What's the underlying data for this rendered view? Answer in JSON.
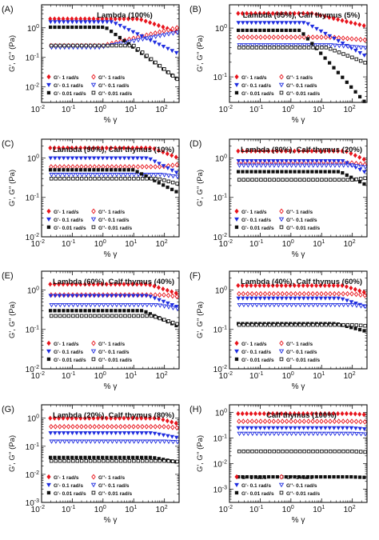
{
  "figure": {
    "x_label": "% γ",
    "y_label": "G', G'' (Pa)",
    "legend_labels": [
      "G'- 1 rad/s",
      "G''- 1 rad/s",
      "G'- 0.1 rad/s",
      "G''- 0.1 rad/s",
      "G'- 0.01 rad/s",
      "G''- 0.01 rad/s"
    ]
  },
  "colors": {
    "red": "#e8141c",
    "blue": "#1f2de0",
    "black": "#111111"
  },
  "chart_data": [
    {
      "panel": "(A)",
      "type": "scatter",
      "title": "Lambda (100%)",
      "xlabel": "% γ",
      "ylabel": "G', G'' (Pa)",
      "x_scale": "log",
      "y_scale": "log",
      "xlim": [
        0.01,
        300
      ],
      "ylim": [
        0.003,
        6
      ],
      "y_ticks": [
        "10^-1",
        "10^0"
      ],
      "legend_position": "bottom-left",
      "series": [
        {
          "name": "G'- 1 rad/s",
          "color": "red",
          "marker": "diamond",
          "filled": true,
          "y_plateau": 2.0,
          "x_onset": 15,
          "decay": 0.35
        },
        {
          "name": "G''- 1 rad/s",
          "color": "red",
          "marker": "diamond",
          "filled": false,
          "y_plateau": 0.25,
          "x_onset": 1,
          "decay": -0.25
        },
        {
          "name": "G'- 0.1 rad/s",
          "color": "blue",
          "marker": "triangle",
          "filled": true,
          "y_plateau": 1.6,
          "x_onset": 2,
          "decay": 0.5
        },
        {
          "name": "G''- 0.1 rad/s",
          "color": "blue",
          "marker": "triangle",
          "filled": false,
          "y_plateau": 0.22,
          "x_onset": 0.8,
          "decay": -0.2
        },
        {
          "name": "G'- 0.01 rad/s",
          "color": "black",
          "marker": "square",
          "filled": true,
          "y_plateau": 1.05,
          "x_onset": 1.2,
          "decay": 0.75
        },
        {
          "name": "G''- 0.01 rad/s",
          "color": "black",
          "marker": "square",
          "filled": false,
          "y_plateau": 0.25,
          "x_onset": 10,
          "decay": 0.8
        }
      ]
    },
    {
      "panel": "(B)",
      "type": "scatter",
      "title": "Lambda (95%), Calf thymus (5%)",
      "xlabel": "% γ",
      "ylabel": "G', G'' (Pa)",
      "x_scale": "log",
      "y_scale": "log",
      "xlim": [
        0.01,
        300
      ],
      "ylim": [
        0.03,
        3
      ],
      "y_ticks": [
        "10^-1",
        "10^0"
      ],
      "legend_position": "bottom-left",
      "series": [
        {
          "name": "G'- 1 rad/s",
          "color": "red",
          "marker": "diamond",
          "filled": true,
          "y_plateau": 2.0,
          "x_onset": 5,
          "decay": 0.15
        },
        {
          "name": "G''- 1 rad/s",
          "color": "red",
          "marker": "diamond",
          "filled": false,
          "y_plateau": 0.65,
          "x_onset": 20,
          "decay": 0.05
        },
        {
          "name": "G'- 0.1 rad/s",
          "color": "blue",
          "marker": "triangle",
          "filled": true,
          "y_plateau": 1.3,
          "x_onset": 3,
          "decay": 0.35
        },
        {
          "name": "G''- 0.1 rad/s",
          "color": "blue",
          "marker": "triangle",
          "filled": false,
          "y_plateau": 0.45,
          "x_onset": 20,
          "decay": 0.05
        },
        {
          "name": "G'- 0.01 rad/s",
          "color": "black",
          "marker": "square",
          "filled": true,
          "y_plateau": 0.9,
          "x_onset": 2,
          "decay": 0.7
        },
        {
          "name": "G''- 0.01 rad/s",
          "color": "black",
          "marker": "square",
          "filled": false,
          "y_plateau": 0.4,
          "x_onset": 15,
          "decay": 0.25
        }
      ]
    },
    {
      "panel": "(C)",
      "type": "scatter",
      "title": "Lambda (90%), Calf thymus (10%)",
      "xlabel": "% γ",
      "ylabel": "G', G'' (Pa)",
      "x_scale": "log",
      "y_scale": "log",
      "xlim": [
        0.01,
        300
      ],
      "ylim": [
        0.01,
        3
      ],
      "y_ticks": [
        "10^-1",
        "10^0"
      ],
      "legend_position": "bottom-left",
      "series": [
        {
          "name": "G'- 1 rad/s",
          "color": "red",
          "marker": "diamond",
          "filled": true,
          "y_plateau": 1.8,
          "x_onset": 40,
          "decay": 0.3
        },
        {
          "name": "G''- 1 rad/s",
          "color": "red",
          "marker": "diamond",
          "filled": false,
          "y_plateau": 0.6,
          "x_onset": 80,
          "decay": -0.1
        },
        {
          "name": "G'- 0.1 rad/s",
          "color": "blue",
          "marker": "triangle",
          "filled": true,
          "y_plateau": 1.0,
          "x_onset": 30,
          "decay": 0.4
        },
        {
          "name": "G''- 0.1 rad/s",
          "color": "blue",
          "marker": "triangle",
          "filled": false,
          "y_plateau": 0.38,
          "x_onset": 80,
          "decay": 0.1
        },
        {
          "name": "G'- 0.01 rad/s",
          "color": "black",
          "marker": "square",
          "filled": true,
          "y_plateau": 0.5,
          "x_onset": 10,
          "decay": 0.4
        },
        {
          "name": "G''- 0.01 rad/s",
          "color": "black",
          "marker": "square",
          "filled": false,
          "y_plateau": 0.3,
          "x_onset": 60,
          "decay": 0.2
        }
      ]
    },
    {
      "panel": "(D)",
      "type": "scatter",
      "title": "Lambda (80%), Calf thymus (20%)",
      "xlabel": "% γ",
      "ylabel": "G', G'' (Pa)",
      "x_scale": "log",
      "y_scale": "log",
      "xlim": [
        0.01,
        300
      ],
      "ylim": [
        0.01,
        3
      ],
      "y_ticks": [
        "10^-1",
        "10^0"
      ],
      "legend_position": "bottom-left",
      "series": [
        {
          "name": "G'- 1 rad/s",
          "color": "red",
          "marker": "diamond",
          "filled": true,
          "y_plateau": 1.5,
          "x_onset": 60,
          "decay": 0.35
        },
        {
          "name": "G''- 1 rad/s",
          "color": "red",
          "marker": "diamond",
          "filled": false,
          "y_plateau": 0.75,
          "x_onset": 100,
          "decay": 0.1
        },
        {
          "name": "G'- 0.1 rad/s",
          "color": "blue",
          "marker": "triangle",
          "filled": true,
          "y_plateau": 0.85,
          "x_onset": 50,
          "decay": 0.4
        },
        {
          "name": "G''- 0.1 rad/s",
          "color": "blue",
          "marker": "triangle",
          "filled": false,
          "y_plateau": 0.65,
          "x_onset": 100,
          "decay": 0.1
        },
        {
          "name": "G'- 0.01 rad/s",
          "color": "black",
          "marker": "square",
          "filled": true,
          "y_plateau": 0.45,
          "x_onset": 40,
          "decay": 0.4
        },
        {
          "name": "G''- 0.01 rad/s",
          "color": "black",
          "marker": "square",
          "filled": false,
          "y_plateau": 0.28,
          "x_onset": 100,
          "decay": -0.1
        }
      ]
    },
    {
      "panel": "(E)",
      "type": "scatter",
      "title": "Lambda (60%), Calf thymus (40%)",
      "xlabel": "% γ",
      "ylabel": "G', G'' (Pa)",
      "x_scale": "log",
      "y_scale": "log",
      "xlim": [
        0.01,
        300
      ],
      "ylim": [
        0.01,
        3
      ],
      "y_ticks": [
        "10^-1",
        "10^0"
      ],
      "legend_position": "bottom-left",
      "series": [
        {
          "name": "G'- 1 rad/s",
          "color": "red",
          "marker": "diamond",
          "filled": true,
          "y_plateau": 1.4,
          "x_onset": 30,
          "decay": 0.25
        },
        {
          "name": "G''- 1 rad/s",
          "color": "red",
          "marker": "diamond",
          "filled": false,
          "y_plateau": 0.75,
          "x_onset": 100,
          "decay": 0.1
        },
        {
          "name": "G'- 0.1 rad/s",
          "color": "blue",
          "marker": "triangle",
          "filled": true,
          "y_plateau": 0.72,
          "x_onset": 30,
          "decay": 0.3
        },
        {
          "name": "G''- 0.1 rad/s",
          "color": "blue",
          "marker": "triangle",
          "filled": false,
          "y_plateau": 0.42,
          "x_onset": 60,
          "decay": 0.15
        },
        {
          "name": "G'- 0.01 rad/s",
          "color": "black",
          "marker": "square",
          "filled": true,
          "y_plateau": 0.3,
          "x_onset": 20,
          "decay": 0.35
        },
        {
          "name": "G''- 0.01 rad/s",
          "color": "black",
          "marker": "square",
          "filled": false,
          "y_plateau": 0.22,
          "x_onset": 40,
          "decay": 0.25
        }
      ]
    },
    {
      "panel": "(F)",
      "type": "scatter",
      "title": "Lambda (40%), Calf thymus (60%)",
      "xlabel": "% γ",
      "ylabel": "G', G'' (Pa)",
      "x_scale": "log",
      "y_scale": "log",
      "xlim": [
        0.01,
        300
      ],
      "ylim": [
        0.01,
        3
      ],
      "y_ticks": [
        "10^-1",
        "10^0"
      ],
      "legend_position": "bottom-left",
      "series": [
        {
          "name": "G'- 1 rad/s",
          "color": "red",
          "marker": "diamond",
          "filled": true,
          "y_plateau": 1.3,
          "x_onset": 50,
          "decay": 0.25
        },
        {
          "name": "G''- 1 rad/s",
          "color": "red",
          "marker": "diamond",
          "filled": false,
          "y_plateau": 0.8,
          "x_onset": 100,
          "decay": 0.1
        },
        {
          "name": "G'- 0.1 rad/s",
          "color": "blue",
          "marker": "triangle",
          "filled": true,
          "y_plateau": 0.62,
          "x_onset": 40,
          "decay": 0.25
        },
        {
          "name": "G''- 0.1 rad/s",
          "color": "blue",
          "marker": "triangle",
          "filled": false,
          "y_plateau": 0.42,
          "x_onset": 100,
          "decay": 0.1
        },
        {
          "name": "G'- 0.01 rad/s",
          "color": "black",
          "marker": "square",
          "filled": true,
          "y_plateau": 0.14,
          "x_onset": 30,
          "decay": 0.2
        },
        {
          "name": "G''- 0.01 rad/s",
          "color": "black",
          "marker": "square",
          "filled": false,
          "y_plateau": 0.13,
          "x_onset": 100,
          "decay": 0.05
        }
      ]
    },
    {
      "panel": "(G)",
      "type": "scatter",
      "title": "Lambda (20%), Calf thymus (80%)",
      "xlabel": "% γ",
      "ylabel": "G', G'' (Pa)",
      "x_scale": "log",
      "y_scale": "log",
      "xlim": [
        0.01,
        300
      ],
      "ylim": [
        0.001,
        3
      ],
      "y_ticks": [
        "10^-2",
        "10^-1",
        "10^0"
      ],
      "legend_position": "bottom-left",
      "series": [
        {
          "name": "G'- 1 rad/s",
          "color": "red",
          "marker": "diamond",
          "filled": true,
          "y_plateau": 1.0,
          "x_onset": 60,
          "decay": 0.3
        },
        {
          "name": "G''- 1 rad/s",
          "color": "red",
          "marker": "diamond",
          "filled": false,
          "y_plateau": 0.5,
          "x_onset": 100,
          "decay": 0.1
        },
        {
          "name": "G'- 0.1 rad/s",
          "color": "blue",
          "marker": "triangle",
          "filled": true,
          "y_plateau": 0.3,
          "x_onset": 40,
          "decay": 0.2
        },
        {
          "name": "G''- 0.1 rad/s",
          "color": "blue",
          "marker": "triangle",
          "filled": false,
          "y_plateau": 0.15,
          "x_onset": 100,
          "decay": 0.05
        },
        {
          "name": "G'- 0.01 rad/s",
          "color": "black",
          "marker": "square",
          "filled": true,
          "y_plateau": 0.04,
          "x_onset": 40,
          "decay": 0.2
        },
        {
          "name": "G''- 0.01 rad/s",
          "color": "black",
          "marker": "square",
          "filled": false,
          "y_plateau": 0.03,
          "x_onset": 100,
          "decay": 0.05
        }
      ]
    },
    {
      "panel": "(H)",
      "type": "scatter",
      "title": "Calf thymus (100%)",
      "xlabel": "% γ",
      "ylabel": "G', G'' (Pa)",
      "x_scale": "log",
      "y_scale": "log",
      "xlim": [
        0.01,
        300
      ],
      "ylim": [
        0.0003,
        2
      ],
      "y_ticks": [
        "10^-3",
        "10^-2",
        "10^-1",
        "10^0"
      ],
      "legend_position": "bottom-left",
      "series": [
        {
          "name": "G'- 1 rad/s",
          "color": "red",
          "marker": "diamond",
          "filled": true,
          "y_plateau": 0.9,
          "x_onset": 100,
          "decay": 0.1
        },
        {
          "name": "G''- 1 rad/s",
          "color": "red",
          "marker": "diamond",
          "filled": false,
          "y_plateau": 0.45,
          "x_onset": 100,
          "decay": 0.05
        },
        {
          "name": "G'- 0.1 rad/s",
          "color": "blue",
          "marker": "triangle",
          "filled": true,
          "y_plateau": 0.25,
          "x_onset": 100,
          "decay": 0.1
        },
        {
          "name": "G''- 0.1 rad/s",
          "color": "blue",
          "marker": "triangle",
          "filled": false,
          "y_plateau": 0.15,
          "x_onset": 100,
          "decay": 0.05
        },
        {
          "name": "G'- 0.01 rad/s",
          "color": "black",
          "marker": "square",
          "filled": true,
          "y_plateau": 0.003,
          "x_onset": 100,
          "decay": 0.05
        },
        {
          "name": "G''- 0.01 rad/s",
          "color": "black",
          "marker": "square",
          "filled": false,
          "y_plateau": 0.03,
          "x_onset": 100,
          "decay": 0.05
        }
      ]
    }
  ]
}
